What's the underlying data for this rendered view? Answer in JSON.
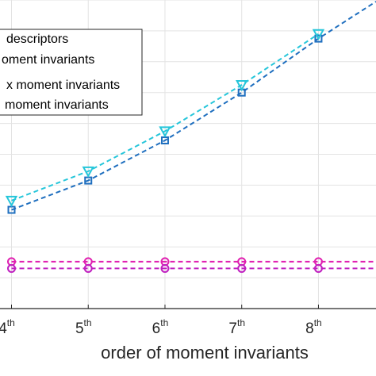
{
  "chart_data": {
    "type": "line",
    "title": "",
    "xlabel": "order of moment invariants",
    "ylabel": "",
    "categories": [
      "4",
      "5",
      "6",
      "7",
      "8"
    ],
    "category_suffix": "th",
    "x": [
      4,
      5,
      6,
      7,
      8
    ],
    "xlim": [
      3.85,
      8.75
    ],
    "ylim": [
      0,
      10
    ],
    "grid": true,
    "legend": {
      "placement": "top-left",
      "entries": [
        "descriptors",
        "oment invariants",
        "x moment invariants",
        "moment invariants"
      ]
    },
    "series": [
      {
        "color": "#1f6fbf",
        "marker": "square",
        "linestyle": "dashed",
        "x": [
          4,
          5,
          6,
          7,
          8,
          8.75
        ],
        "y": [
          3.2,
          4.15,
          5.45,
          7.0,
          8.75,
          9.95
        ]
      },
      {
        "color": "#26c6da",
        "marker": "triangle-down",
        "linestyle": "dashed",
        "x": [
          4,
          5,
          6,
          7,
          8
        ],
        "y": [
          3.5,
          4.45,
          5.75,
          7.25,
          8.9
        ]
      },
      {
        "color": "#e020b0",
        "marker": "circle",
        "linestyle": "dashed",
        "x": [
          4,
          5,
          6,
          7,
          8,
          8.75
        ],
        "y": [
          1.52,
          1.52,
          1.52,
          1.52,
          1.52,
          1.52
        ]
      },
      {
        "color": "#c020c0",
        "marker": "circle",
        "linestyle": "dashed",
        "x": [
          4,
          5,
          6,
          7,
          8,
          8.75
        ],
        "y": [
          1.3,
          1.3,
          1.3,
          1.3,
          1.3,
          1.3
        ]
      }
    ]
  }
}
